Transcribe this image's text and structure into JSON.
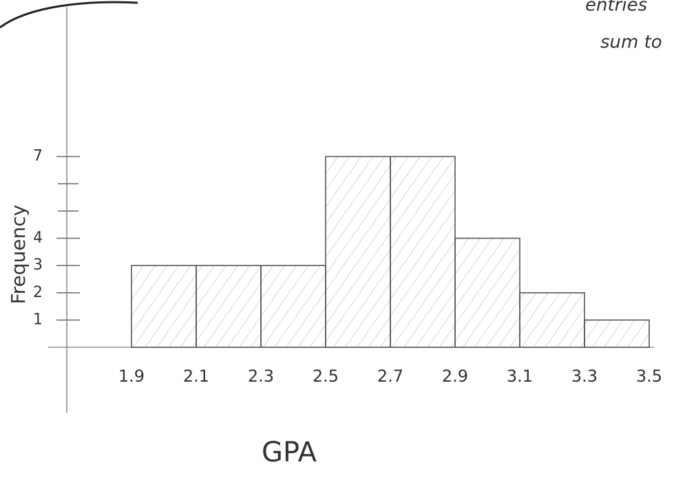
{
  "chart_data": {
    "type": "histogram",
    "xlabel": "GPA",
    "ylabel": "Frequency",
    "annotations": [
      "entries",
      "sum to"
    ],
    "bins": [
      1.9,
      2.1,
      2.3,
      2.5,
      2.7,
      2.9,
      3.1,
      3.3,
      3.5
    ],
    "values": [
      3,
      3,
      3,
      7,
      7,
      4,
      2,
      1
    ],
    "color": "#555555",
    "xlim": [
      1.7,
      3.5
    ],
    "ylim": [
      0,
      8
    ],
    "xticks": [
      1.9,
      2.1,
      2.3,
      2.5,
      2.7,
      2.9,
      3.1,
      3.3,
      3.5
    ],
    "yticks": [
      1,
      2,
      3,
      4,
      7
    ],
    "yminorticks": [
      5,
      6
    ]
  }
}
